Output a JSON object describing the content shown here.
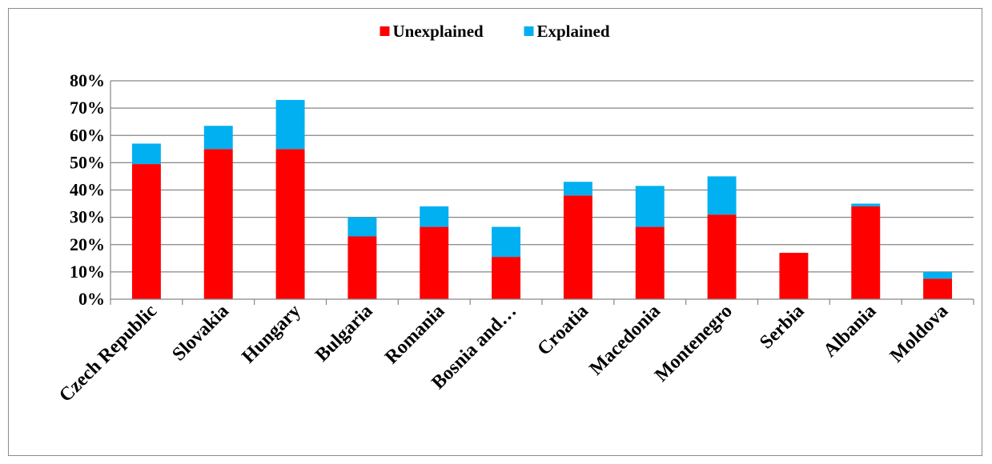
{
  "chart_data": {
    "type": "bar",
    "stacked": true,
    "title": "",
    "xlabel": "",
    "ylabel": "",
    "categories": [
      "Czech Republic",
      "Slovakia",
      "Hungary",
      "Bulgaria",
      "Romania",
      "Bosnia and…",
      "Croatia",
      "Macedonia",
      "Montenegro",
      "Serbia",
      "Albania",
      "Moldova"
    ],
    "series": [
      {
        "name": "Unexplained",
        "color": "#ff0000",
        "values": [
          49.5,
          55,
          55,
          23,
          26.5,
          15.5,
          38,
          26.5,
          31,
          17,
          34,
          7.5
        ]
      },
      {
        "name": "Explained",
        "color": "#00b0f0",
        "values": [
          7.5,
          8.5,
          18,
          7,
          7.5,
          11,
          5,
          15,
          14,
          0,
          1,
          2.5
        ]
      }
    ],
    "ylim": [
      0,
      80
    ],
    "yticks": [
      "0%",
      "10%",
      "20%",
      "30%",
      "40%",
      "50%",
      "60%",
      "70%",
      "80%"
    ],
    "grid": true,
    "legend_position": "top-center"
  }
}
